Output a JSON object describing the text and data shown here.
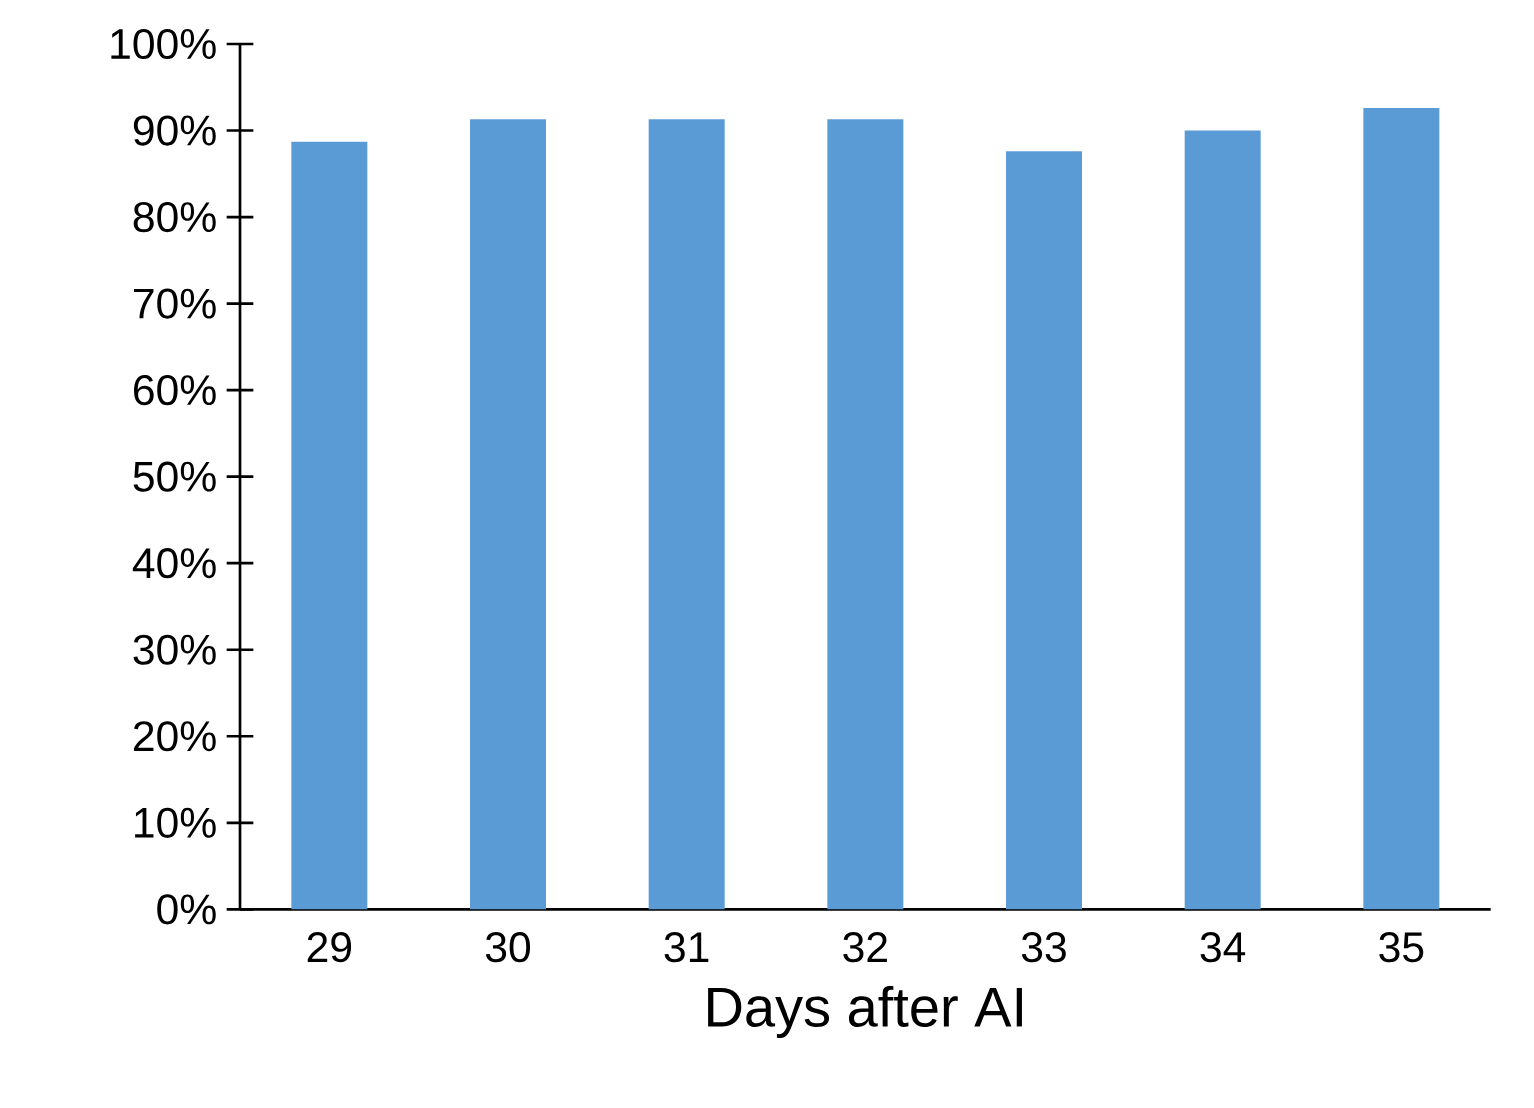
{
  "chart_data": {
    "type": "bar",
    "xlabel": "Days after AI",
    "categories": [
      "29",
      "30",
      "31",
      "32",
      "33",
      "34",
      "35"
    ],
    "values": [
      88.7,
      91.3,
      91.3,
      91.3,
      87.6,
      90.0,
      92.6
    ],
    "color": "#5b9bd5",
    "ylim": [
      0,
      100
    ],
    "yticks": [
      {
        "value": 0,
        "label": "0%"
      },
      {
        "value": 10,
        "label": "10%"
      },
      {
        "value": 20,
        "label": "20%"
      },
      {
        "value": 30,
        "label": "30%"
      },
      {
        "value": 40,
        "label": "40%"
      },
      {
        "value": 50,
        "label": "50%"
      },
      {
        "value": 60,
        "label": "60%"
      },
      {
        "value": 70,
        "label": "70%"
      },
      {
        "value": 80,
        "label": "80%"
      },
      {
        "value": 90,
        "label": "90%"
      },
      {
        "value": 100,
        "label": "100%"
      }
    ],
    "grid": false
  }
}
